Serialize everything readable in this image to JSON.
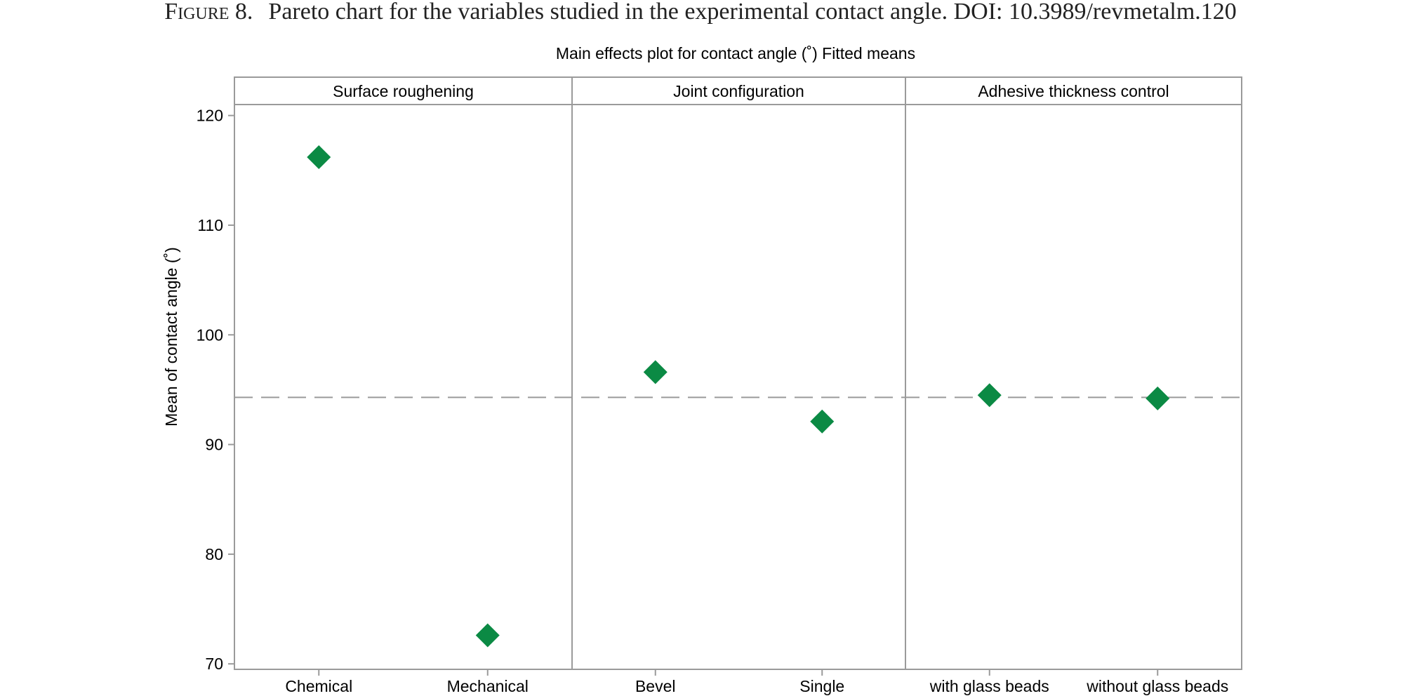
{
  "caption": {
    "label": "Figure 8.",
    "text": "Pareto chart for the variables studied in the experimental contact angle. DOI: 10.3989/revmetalm.120"
  },
  "chart_data": {
    "type": "scatter",
    "title": "Main effects plot for contact angle (˚) Fitted means",
    "ylabel": "Mean of contact angle (˚)",
    "xlabel": "",
    "ylim": [
      69.5,
      121
    ],
    "yticks": [
      70,
      80,
      90,
      100,
      110,
      120
    ],
    "reference_line": {
      "value": 94.3,
      "style": "dashed"
    },
    "marker": {
      "shape": "diamond",
      "color": "#0b8a44"
    },
    "panels": [
      {
        "factor": "Surface roughening",
        "categories": [
          "Chemical",
          "Mechanical"
        ],
        "values": [
          116.2,
          72.6
        ]
      },
      {
        "factor": "Joint configuration",
        "categories": [
          "Bevel",
          "Single"
        ],
        "values": [
          96.6,
          92.1
        ]
      },
      {
        "factor": "Adhesive thickness control",
        "categories": [
          "with glass beads",
          "without glass beads"
        ],
        "values": [
          94.5,
          94.2
        ]
      }
    ],
    "grid": false,
    "legend": "none"
  },
  "colors": {
    "frame": "#9a9a9a",
    "reference_line": "#9a9a9a",
    "marker": "#0b8a44",
    "text": "#000000"
  }
}
